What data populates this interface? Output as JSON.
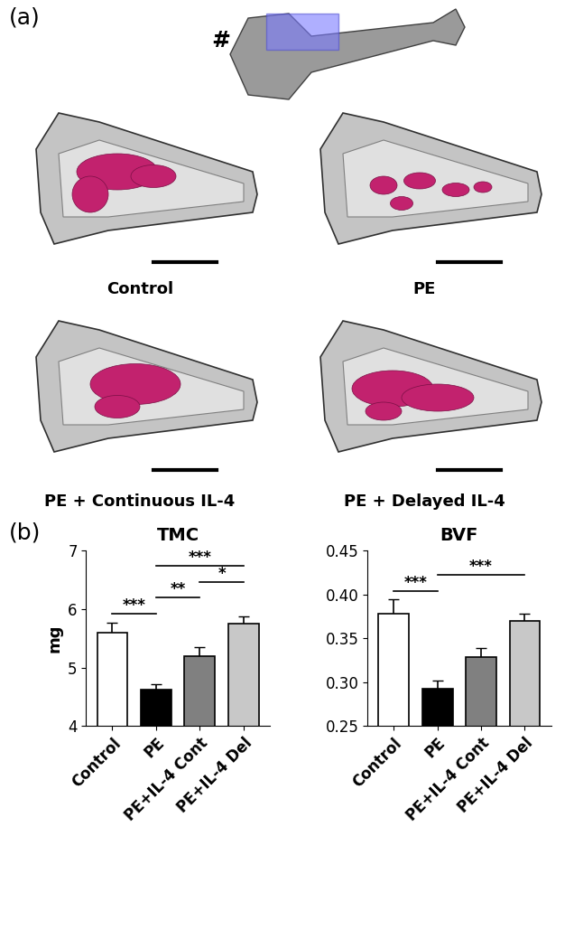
{
  "panel_a": {
    "label": "(a)",
    "symbol": "#",
    "groups": [
      "Control",
      "PE",
      "PE + Continuous IL-4",
      "PE + Delayed IL-4"
    ]
  },
  "panel_b": {
    "label": "(b)"
  },
  "chart_data": [
    {
      "type": "bar",
      "title": "TMC",
      "y_label": "mg",
      "categories": [
        "Control",
        "PE",
        "PE+IL-4 Cont",
        "PE+IL-4 Del"
      ],
      "values": [
        5.6,
        4.62,
        5.2,
        5.75
      ],
      "errors": [
        0.17,
        0.1,
        0.15,
        0.12
      ],
      "colors": [
        "#ffffff",
        "#000000",
        "#808080",
        "#c8c8c8"
      ],
      "ylim": [
        4,
        7
      ],
      "yticks": [
        4,
        5,
        6,
        7
      ],
      "grid": false,
      "significance": [
        {
          "between": [
            "Control",
            "PE"
          ],
          "text": "***"
        },
        {
          "between": [
            "PE",
            "PE+IL-4 Del"
          ],
          "text": "***"
        },
        {
          "between": [
            "PE",
            "PE+IL-4 Cont"
          ],
          "text": "**"
        },
        {
          "between": [
            "PE+IL-4 Cont",
            "PE+IL-4 Del"
          ],
          "text": "*"
        }
      ]
    },
    {
      "type": "bar",
      "title": "BVF",
      "categories": [
        "Control",
        "PE",
        "PE+IL-4 Cont",
        "PE+IL-4 Del"
      ],
      "values": [
        0.378,
        0.292,
        0.328,
        0.37
      ],
      "errors": [
        0.016,
        0.01,
        0.011,
        0.008
      ],
      "colors": [
        "#ffffff",
        "#000000",
        "#808080",
        "#c8c8c8"
      ],
      "ylim": [
        0.25,
        0.45
      ],
      "yticks": [
        0.25,
        {
          "value": 0.3,
          "label": "0.30"
        },
        0.35,
        {
          "value": 0.4,
          "label": "0.40"
        },
        0.45
      ],
      "grid": false,
      "significance": [
        {
          "between": [
            "Control",
            "PE"
          ],
          "text": "***"
        },
        {
          "between": [
            "PE",
            "PE+IL-4 Del"
          ],
          "text": "***"
        }
      ]
    }
  ]
}
